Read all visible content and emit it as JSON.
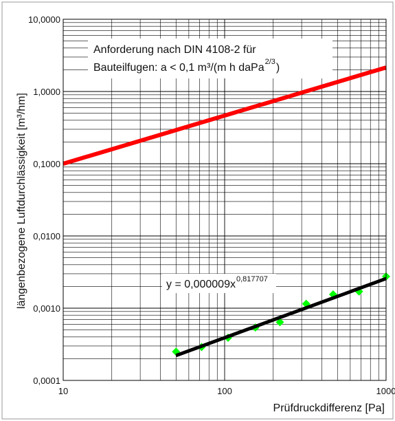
{
  "chart_data": {
    "type": "scatter",
    "xscale": "log",
    "yscale": "log",
    "xlim": [
      10,
      1000
    ],
    "ylim": [
      0.0001,
      10
    ],
    "grid": true,
    "xlabel": "Prüfdruckdifferenz [Pa]",
    "ylabel": "längenbezogene Luftdurchlässigkeit [m³/hm]",
    "x_ticks": [
      {
        "value": 10,
        "label": "10"
      },
      {
        "value": 100,
        "label": "100"
      },
      {
        "value": 1000,
        "label": "1000"
      }
    ],
    "y_ticks": [
      {
        "value": 10,
        "label": "10,0000"
      },
      {
        "value": 1,
        "label": "1,0000"
      },
      {
        "value": 0.1,
        "label": "0,1000"
      },
      {
        "value": 0.01,
        "label": "0,0100"
      },
      {
        "value": 0.001,
        "label": "0,0010"
      },
      {
        "value": 0.0001,
        "label": "0,0001"
      }
    ],
    "series": [
      {
        "kind": "line",
        "color": "#ff0000",
        "points": [
          [
            10,
            0.1
          ],
          [
            1000,
            2.15
          ]
        ],
        "annotation": {
          "lines": [
            "Anforderung nach DIN 4108-2 für",
            "Bauteilfugen: a < 0,1 m³/(m h daPa",
            ")"
          ],
          "superscript": "2/3"
        }
      },
      {
        "kind": "markers",
        "color": "#00ff00",
        "marker": "diamond",
        "points": [
          [
            50,
            0.00025
          ],
          [
            72,
            0.00029
          ],
          [
            105,
            0.00039
          ],
          [
            155,
            0.00054
          ],
          [
            220,
            0.00064
          ],
          [
            320,
            0.00115
          ],
          [
            470,
            0.00155
          ],
          [
            680,
            0.0017
          ],
          [
            1000,
            0.00275
          ]
        ]
      },
      {
        "kind": "line",
        "color": "#000000",
        "points": [
          [
            50,
            0.000221
          ],
          [
            1000,
            0.00257
          ]
        ],
        "annotation": {
          "text": "y = 0,000009x",
          "superscript": "0,817707"
        }
      }
    ]
  }
}
